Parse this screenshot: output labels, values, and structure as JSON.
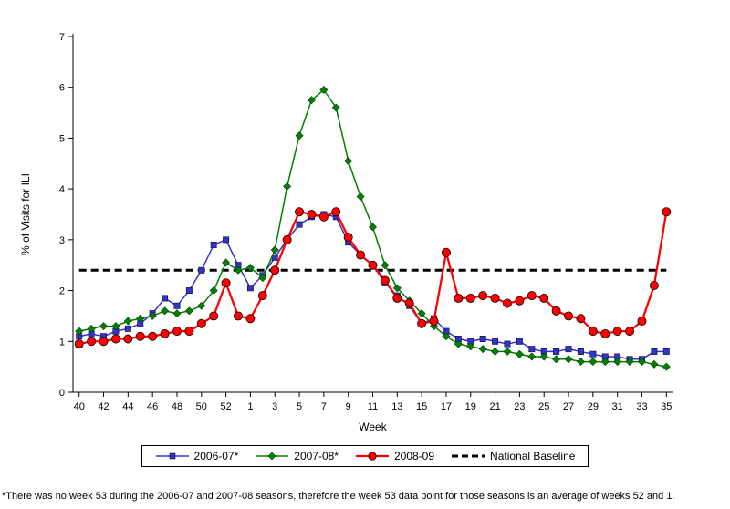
{
  "chart_data": {
    "type": "line",
    "title": "",
    "xlabel": "Week",
    "ylabel": "% of Visits for ILI",
    "ylim": [
      0,
      7
    ],
    "y_ticks": [
      0,
      1,
      2,
      3,
      4,
      5,
      6,
      7
    ],
    "x_tick_interval": 2,
    "grid": false,
    "legend_position": "bottom",
    "categories": [
      "40",
      "41",
      "42",
      "43",
      "44",
      "45",
      "46",
      "47",
      "48",
      "49",
      "50",
      "51",
      "52",
      "53",
      "1",
      "2",
      "3",
      "4",
      "5",
      "6",
      "7",
      "8",
      "9",
      "10",
      "11",
      "12",
      "13",
      "14",
      "15",
      "16",
      "17",
      "18",
      "19",
      "20",
      "21",
      "22",
      "23",
      "24",
      "25",
      "26",
      "27",
      "28",
      "29",
      "30",
      "31",
      "32",
      "33",
      "34",
      "35"
    ],
    "series": [
      {
        "name": "2006-07*",
        "marker": "square",
        "color": "#3333CC",
        "line_width": 1.5,
        "values": [
          1.1,
          1.15,
          1.1,
          1.2,
          1.25,
          1.35,
          1.55,
          1.85,
          1.7,
          2.0,
          2.4,
          2.9,
          3.0,
          2.5,
          2.05,
          2.3,
          2.65,
          3.0,
          3.3,
          3.45,
          3.5,
          3.45,
          2.95,
          2.7,
          2.5,
          2.15,
          1.9,
          1.7,
          1.35,
          1.45,
          1.2,
          1.05,
          1.0,
          1.05,
          1.0,
          0.95,
          1.0,
          0.85,
          0.8,
          0.8,
          0.85,
          0.8,
          0.75,
          0.7,
          0.7,
          0.65,
          0.65,
          0.8,
          0.8
        ]
      },
      {
        "name": "2007-08*",
        "marker": "diamond",
        "color": "#008000",
        "line_width": 1.5,
        "values": [
          1.2,
          1.25,
          1.3,
          1.3,
          1.4,
          1.45,
          1.5,
          1.6,
          1.55,
          1.6,
          1.7,
          2.0,
          2.55,
          2.4,
          2.45,
          2.25,
          2.8,
          4.05,
          5.05,
          5.75,
          5.95,
          5.6,
          4.55,
          3.85,
          3.25,
          2.5,
          2.05,
          1.8,
          1.55,
          1.3,
          1.1,
          0.95,
          0.9,
          0.85,
          0.8,
          0.8,
          0.75,
          0.7,
          0.7,
          0.65,
          0.65,
          0.6,
          0.6,
          0.6,
          0.6,
          0.6,
          0.6,
          0.55,
          0.5
        ]
      },
      {
        "name": "2008-09",
        "marker": "circle",
        "color": "#FF0000",
        "line_width": 2.25,
        "values": [
          0.95,
          1.0,
          1.0,
          1.05,
          1.05,
          1.1,
          1.1,
          1.15,
          1.2,
          1.2,
          1.35,
          1.5,
          2.15,
          1.5,
          1.45,
          1.9,
          2.4,
          3.0,
          3.55,
          3.5,
          3.45,
          3.55,
          3.05,
          2.7,
          2.5,
          2.2,
          1.85,
          1.75,
          1.35,
          1.4,
          2.75,
          1.85,
          1.85,
          1.9,
          1.85,
          1.75,
          1.8,
          1.9,
          1.85,
          1.6,
          1.5,
          1.45,
          1.2,
          1.15,
          1.2,
          1.2,
          1.4,
          2.1,
          3.55
        ]
      }
    ],
    "baseline": {
      "name": "National Baseline",
      "value": 2.4,
      "color": "#000000",
      "style": "dashed"
    }
  },
  "footnote": "*There was no week 53 during the 2006-07 and 2007-08 seasons, therefore the week 53 data point for those seasons is an average of weeks 52 and 1."
}
